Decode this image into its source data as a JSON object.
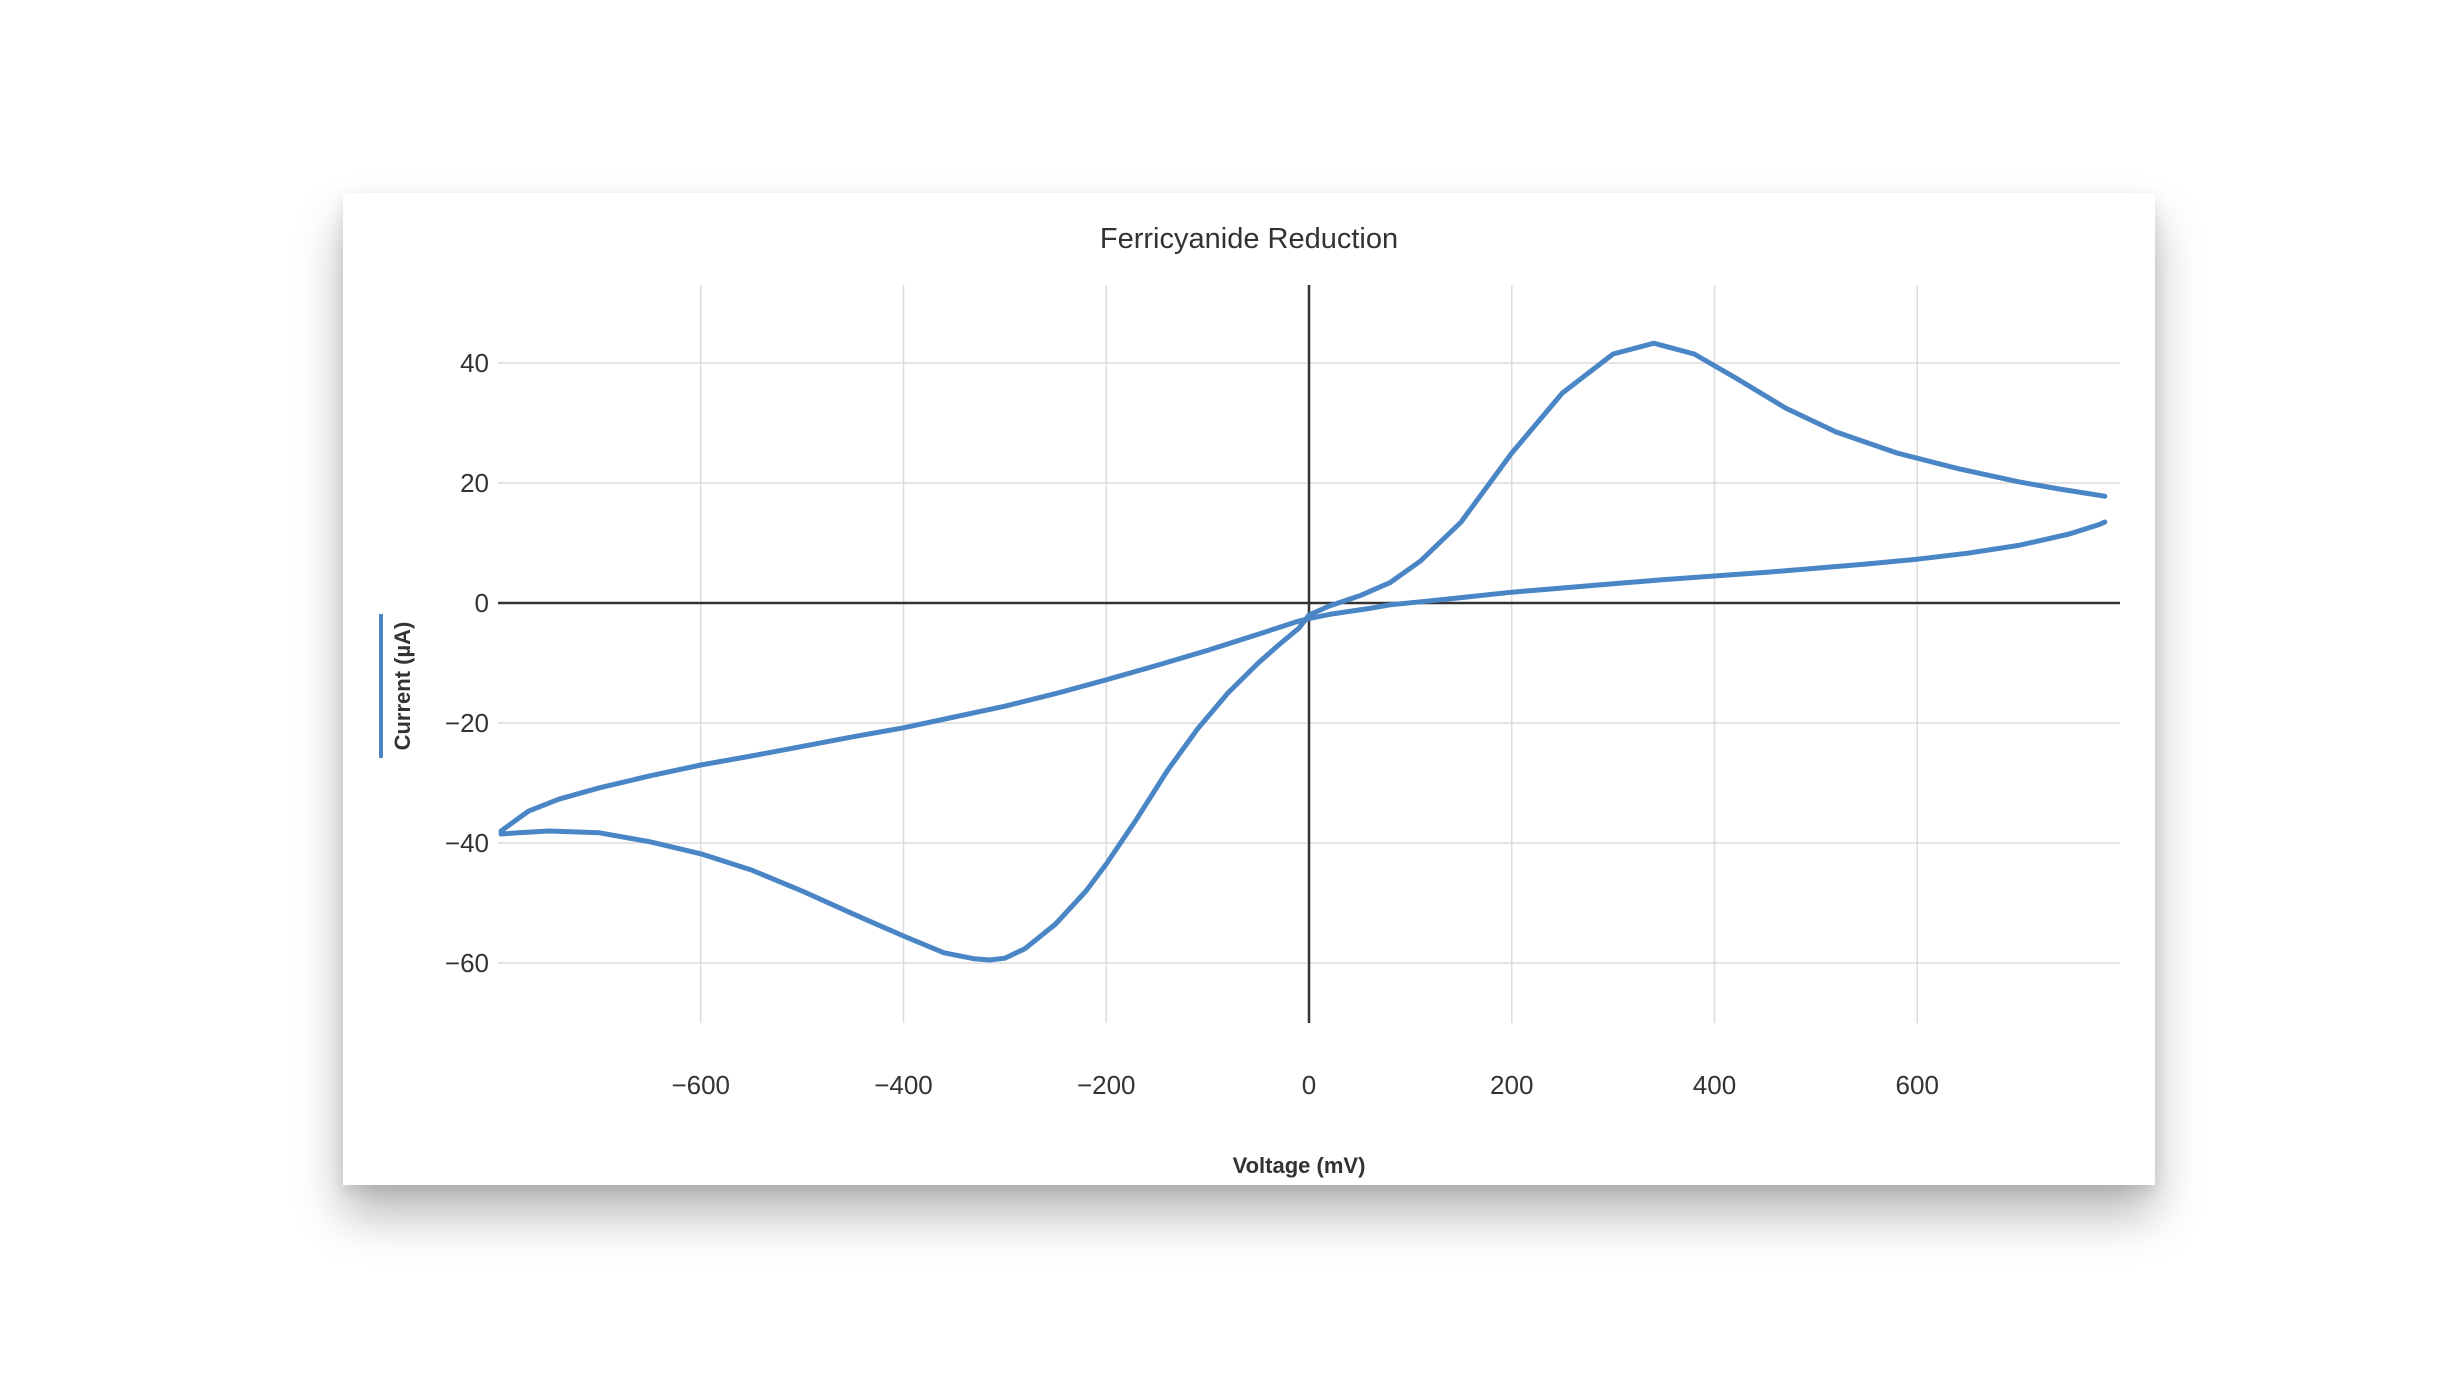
{
  "chart_data": {
    "type": "line",
    "title": "Ferricyanide Reduction",
    "xlabel": "Voltage (mV)",
    "ylabel": "Current (µA)",
    "xlim": [
      -800,
      800
    ],
    "ylim": [
      -70,
      53
    ],
    "x_ticks": [
      -600,
      -400,
      -200,
      0,
      200,
      400,
      600
    ],
    "y_ticks": [
      -60,
      -40,
      -20,
      0,
      20,
      40
    ],
    "grid": true,
    "color": "#4a86c5",
    "series": [
      {
        "x": [
          -797,
          -780,
          -750,
          -700,
          -650,
          -600,
          -550,
          -500,
          -450,
          -400,
          -360,
          -330,
          -315,
          -300,
          -280,
          -250,
          -220,
          -200,
          -170,
          -140,
          -110,
          -80,
          -50,
          -30,
          -10,
          0,
          20,
          50,
          80,
          110,
          150,
          200,
          250,
          300,
          340,
          380,
          420,
          470,
          520,
          580,
          640,
          700,
          740,
          785
        ],
        "y": [
          -38.5,
          -38.3,
          -38.0,
          -38.3,
          -39.8,
          -41.8,
          -44.5,
          -48.0,
          -51.8,
          -55.5,
          -58.3,
          -59.3,
          -59.5,
          -59.2,
          -57.6,
          -53.5,
          -48.0,
          -43.5,
          -36.0,
          -28.0,
          -21.0,
          -15.0,
          -10.0,
          -7.0,
          -4.2,
          -2.0,
          -0.5,
          1.2,
          3.4,
          7.0,
          13.5,
          25.0,
          35.0,
          41.5,
          43.3,
          41.5,
          37.6,
          32.5,
          28.5,
          25.0,
          22.4,
          20.2,
          19.0,
          17.8
        ]
      },
      {
        "x": [
          785,
          780,
          750,
          700,
          650,
          600,
          550,
          500,
          450,
          400,
          350,
          300,
          250,
          200,
          150,
          110,
          80,
          60,
          40,
          20,
          0,
          -10,
          -50,
          -100,
          -150,
          -200,
          -250,
          -300,
          -350,
          -400,
          -450,
          -500,
          -550,
          -600,
          -650,
          -700,
          -740,
          -770,
          -797
        ],
        "y": [
          13.5,
          13.1,
          11.5,
          9.6,
          8.3,
          7.3,
          6.5,
          5.8,
          5.1,
          4.5,
          3.9,
          3.2,
          2.5,
          1.8,
          0.9,
          0.2,
          -0.3,
          -0.9,
          -1.4,
          -1.9,
          -2.6,
          -3.0,
          -5.2,
          -7.9,
          -10.4,
          -12.8,
          -15.1,
          -17.2,
          -19.0,
          -20.8,
          -22.3,
          -23.9,
          -25.5,
          -27.0,
          -28.8,
          -30.8,
          -32.7,
          -34.7,
          -38.0
        ]
      }
    ]
  }
}
